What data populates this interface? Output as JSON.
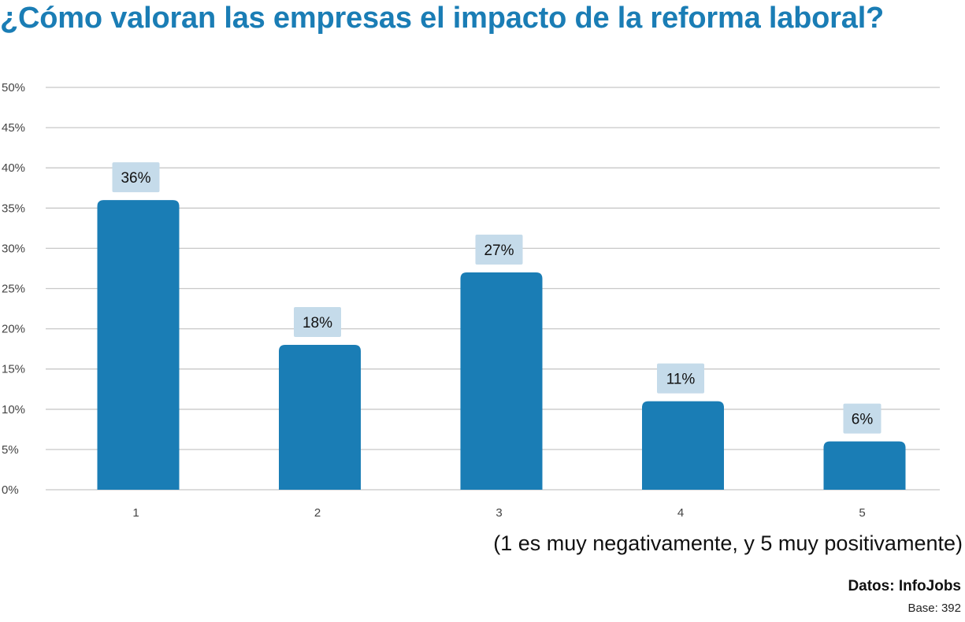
{
  "colors": {
    "title": "#1a7db5",
    "bar": "#1a7db5",
    "label_bg": "#c5dbea",
    "grid": "#c8c8c8",
    "text": "#111111",
    "tick": "#444444"
  },
  "chart_data": {
    "type": "bar",
    "title": "¿Cómo valoran las empresas el impacto de la reforma laboral?",
    "categories": [
      "1",
      "2",
      "3",
      "4",
      "5"
    ],
    "values": [
      36,
      18,
      27,
      11,
      6
    ],
    "data_labels": [
      "36%",
      "18%",
      "27%",
      "11%",
      "6%"
    ],
    "value_unit": "%",
    "yticks": [
      0,
      5,
      10,
      15,
      20,
      25,
      30,
      35,
      40,
      45,
      50
    ],
    "ylim": [
      0,
      50
    ],
    "grid": true,
    "xlabel": "(1 es muy negativamente, y 5 muy positivamente)",
    "ylabel": ""
  },
  "footer": {
    "source": "Datos: InfoJobs",
    "base": "Base: 392"
  }
}
